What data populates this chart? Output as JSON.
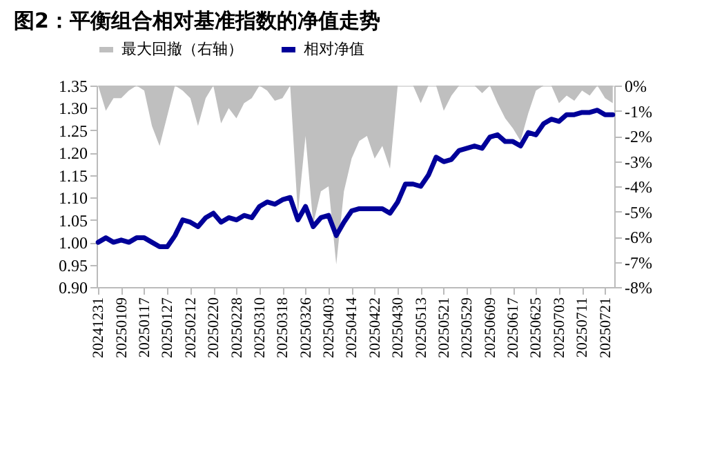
{
  "chart_data": {
    "type": "line",
    "title": "图2：平衡组合相对基准指数的净值走势",
    "categories": [
      "20241231",
      null,
      null,
      "20250109",
      null,
      null,
      "20250117",
      null,
      null,
      "20250127",
      null,
      null,
      "20250212",
      null,
      null,
      "20250220",
      null,
      null,
      "20250228",
      null,
      null,
      "20250310",
      null,
      null,
      "20250318",
      null,
      null,
      "20250326",
      null,
      null,
      "20250403",
      null,
      null,
      "20250414",
      null,
      null,
      "20250422",
      null,
      null,
      "20250430",
      null,
      null,
      "20250513",
      null,
      null,
      "20250521",
      null,
      null,
      "20250529",
      null,
      null,
      "20250609",
      null,
      null,
      "20250617",
      null,
      null,
      "20250625",
      null,
      null,
      "20250703",
      null,
      null,
      "20250711",
      null,
      null,
      "20250721",
      null
    ],
    "series": [
      {
        "name": "最大回撤（右轴）",
        "type": "area",
        "axis": "y2",
        "color": "#bfbfbf",
        "values": [
          0,
          -1.0,
          -0.5,
          -0.5,
          -0.2,
          0,
          -0.2,
          -1.6,
          -2.4,
          -1.2,
          0,
          -0.2,
          -0.5,
          -1.6,
          -0.5,
          0,
          -1.5,
          -0.9,
          -1.3,
          -0.7,
          -0.5,
          0,
          -0.2,
          -0.6,
          -0.5,
          0,
          -5.1,
          -2.0,
          -5.5,
          -4.2,
          -4.0,
          -7.1,
          -4.2,
          -2.9,
          -2.2,
          -2.0,
          -2.9,
          -2.4,
          -3.3,
          0,
          0,
          0,
          -0.7,
          0,
          0,
          -1.0,
          -0.4,
          0,
          0,
          0,
          -0.3,
          0,
          -0.7,
          -1.3,
          -1.7,
          -2.2,
          -1.1,
          -0.2,
          0,
          0,
          -0.7,
          -0.4,
          -0.6,
          -0.2,
          -0.4,
          0,
          -0.5,
          -0.7
        ]
      },
      {
        "name": "相对净值",
        "color": "#000099",
        "values": [
          1.0,
          1.01,
          1.0,
          1.005,
          1.0,
          1.01,
          1.01,
          1.0,
          0.99,
          0.99,
          1.015,
          1.05,
          1.045,
          1.035,
          1.055,
          1.065,
          1.045,
          1.055,
          1.05,
          1.06,
          1.055,
          1.08,
          1.09,
          1.085,
          1.095,
          1.1,
          1.05,
          1.08,
          1.035,
          1.055,
          1.06,
          1.015,
          1.045,
          1.07,
          1.075,
          1.075,
          1.075,
          1.075,
          1.065,
          1.09,
          1.13,
          1.13,
          1.125,
          1.15,
          1.19,
          1.18,
          1.185,
          1.205,
          1.21,
          1.215,
          1.21,
          1.235,
          1.24,
          1.225,
          1.225,
          1.215,
          1.245,
          1.24,
          1.265,
          1.275,
          1.27,
          1.285,
          1.285,
          1.29,
          1.29,
          1.295,
          1.285,
          1.285
        ]
      }
    ],
    "ylim": [
      0.9,
      1.35
    ],
    "yticks": [
      {
        "value": 0.9,
        "label": "0.90"
      },
      0.95,
      {
        "value": 1.0,
        "label": "1.00"
      },
      1.05,
      {
        "value": 1.1,
        "label": "1.10"
      },
      1.15,
      {
        "value": 1.2,
        "label": "1.20"
      },
      1.25,
      {
        "value": 1.3,
        "label": "1.30"
      },
      1.35
    ],
    "y2lim": [
      -8,
      0
    ],
    "y2ticks": [
      {
        "value": 0,
        "label": "0%"
      },
      {
        "value": -1,
        "label": "-1%"
      },
      {
        "value": -2,
        "label": "-2%"
      },
      {
        "value": -3,
        "label": "-3%"
      },
      {
        "value": -4,
        "label": "-4%"
      },
      {
        "value": -5,
        "label": "-5%"
      },
      {
        "value": -6,
        "label": "-6%"
      },
      {
        "value": -7,
        "label": "-7%"
      },
      {
        "value": -8,
        "label": "-8%"
      }
    ],
    "legend": "top",
    "grid": false,
    "line_style": "solid",
    "marker": "none"
  }
}
